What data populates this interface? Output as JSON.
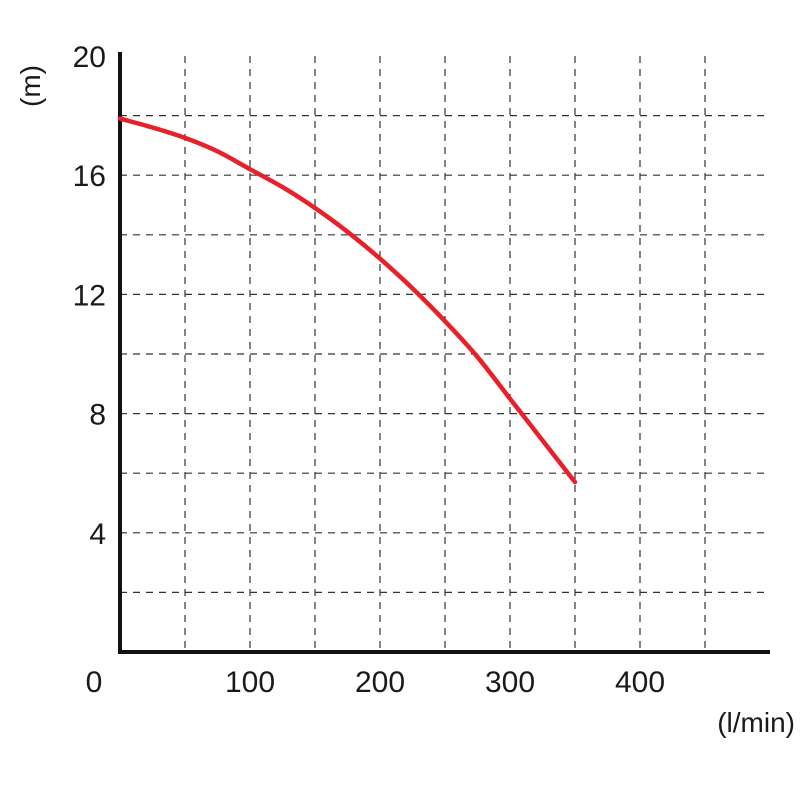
{
  "chart_data": {
    "type": "line",
    "title": "",
    "xlabel": "(l/min)",
    "ylabel": "(m)",
    "xlim": [
      0,
      500
    ],
    "ylim": [
      0,
      20
    ],
    "origin_label": "0",
    "x_ticks": [
      100,
      200,
      300,
      400
    ],
    "y_ticks": [
      4,
      8,
      12,
      16,
      20
    ],
    "x_grid": [
      50,
      100,
      150,
      200,
      250,
      300,
      350,
      400,
      450
    ],
    "y_grid": [
      2,
      4,
      6,
      8,
      10,
      12,
      14,
      16,
      18
    ],
    "grid": true,
    "series": [
      {
        "color": "#e8202a",
        "points": [
          [
            0,
            17.9
          ],
          [
            25,
            17.6
          ],
          [
            50,
            17.25
          ],
          [
            75,
            16.8
          ],
          [
            100,
            16.2
          ],
          [
            125,
            15.6
          ],
          [
            150,
            14.9
          ],
          [
            175,
            14.1
          ],
          [
            200,
            13.2
          ],
          [
            225,
            12.2
          ],
          [
            250,
            11.1
          ],
          [
            275,
            9.9
          ],
          [
            300,
            8.5
          ],
          [
            325,
            7.1
          ],
          [
            350,
            5.7
          ]
        ]
      }
    ]
  }
}
